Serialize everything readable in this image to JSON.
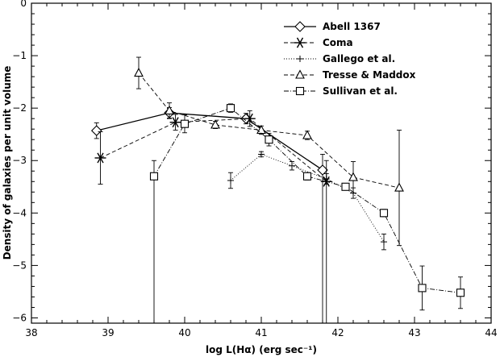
{
  "chart_data": {
    "type": "line",
    "title": "",
    "xlabel": "log L(Hα) (erg sec⁻¹)",
    "ylabel": "Density of galaxies per unit volume",
    "xlim": [
      38,
      44
    ],
    "ylim": [
      -6.1,
      0
    ],
    "xticks": [
      38,
      39,
      40,
      41,
      42,
      43,
      44
    ],
    "yticks": [
      0,
      -1,
      -2,
      -3,
      -4,
      -5,
      -6
    ],
    "xtick_labels": [
      "38",
      "39",
      "40",
      "41",
      "42",
      "43",
      "44"
    ],
    "ytick_labels": [
      "0",
      "−1",
      "−2",
      "−3",
      "−4",
      "−5",
      "−6"
    ],
    "grid": false,
    "legend_position": "top-right",
    "series": [
      {
        "name": "Abell 1367",
        "marker": "diamond",
        "line": "solid",
        "points": [
          {
            "x": 38.85,
            "y": -2.43,
            "err": 0.15
          },
          {
            "x": 39.8,
            "y": -2.09,
            "err": 0.1
          },
          {
            "x": 40.8,
            "y": -2.2,
            "err": 0.1
          },
          {
            "x": 41.8,
            "y": -3.18,
            "err": 0.3,
            "lower": -6.1
          }
        ]
      },
      {
        "name": "Coma",
        "marker": "asterisk",
        "line": "dash",
        "points": [
          {
            "x": 38.9,
            "y": -2.95,
            "err": 0.5
          },
          {
            "x": 39.88,
            "y": -2.27,
            "err": 0.15
          },
          {
            "x": 40.85,
            "y": -2.2,
            "err": 0.15
          },
          {
            "x": 41.85,
            "y": -3.4,
            "err": 0.4,
            "lower": -6.1
          }
        ]
      },
      {
        "name": "Gallego et al.",
        "marker": "plus",
        "line": "dotted",
        "points": [
          {
            "x": 40.6,
            "y": -3.38,
            "err": 0.15
          },
          {
            "x": 41.0,
            "y": -2.88,
            "err": 0.05
          },
          {
            "x": 41.4,
            "y": -3.1,
            "err": 0.08
          },
          {
            "x": 41.85,
            "y": -3.35,
            "err": 0.1
          },
          {
            "x": 42.2,
            "y": -3.62,
            "err": 0.1
          },
          {
            "x": 42.6,
            "y": -4.55,
            "err": 0.15
          }
        ]
      },
      {
        "name": "Tresse & Maddox",
        "marker": "triangle",
        "line": "dash",
        "points": [
          {
            "x": 39.4,
            "y": -1.33,
            "err": 0.3
          },
          {
            "x": 39.8,
            "y": -2.05,
            "err": 0.15
          },
          {
            "x": 40.4,
            "y": -2.32,
            "err": 0.07
          },
          {
            "x": 41.0,
            "y": -2.42,
            "err": 0.08
          },
          {
            "x": 41.6,
            "y": -2.52,
            "err": 0.08
          },
          {
            "x": 42.2,
            "y": -3.32,
            "err": 0.3
          },
          {
            "x": 42.8,
            "y": -3.52,
            "err": 1.1
          }
        ]
      },
      {
        "name": "Sullivan et al.",
        "marker": "square",
        "line": "dashdot",
        "points": [
          {
            "x": 39.6,
            "y": -3.3,
            "err": 0.3,
            "lower": -6.1
          },
          {
            "x": 40.0,
            "y": -2.3,
            "err": 0.17
          },
          {
            "x": 40.6,
            "y": -2.0,
            "err": 0.08
          },
          {
            "x": 41.1,
            "y": -2.6,
            "err": 0.12
          },
          {
            "x": 41.6,
            "y": -3.3,
            "err": 0.07
          },
          {
            "x": 42.1,
            "y": -3.5,
            "err": 0.05
          },
          {
            "x": 42.6,
            "y": -4.0,
            "err": 0.07
          },
          {
            "x": 43.1,
            "y": -5.43,
            "err": 0.42
          },
          {
            "x": 43.6,
            "y": -5.52,
            "err": 0.3
          }
        ]
      }
    ]
  }
}
